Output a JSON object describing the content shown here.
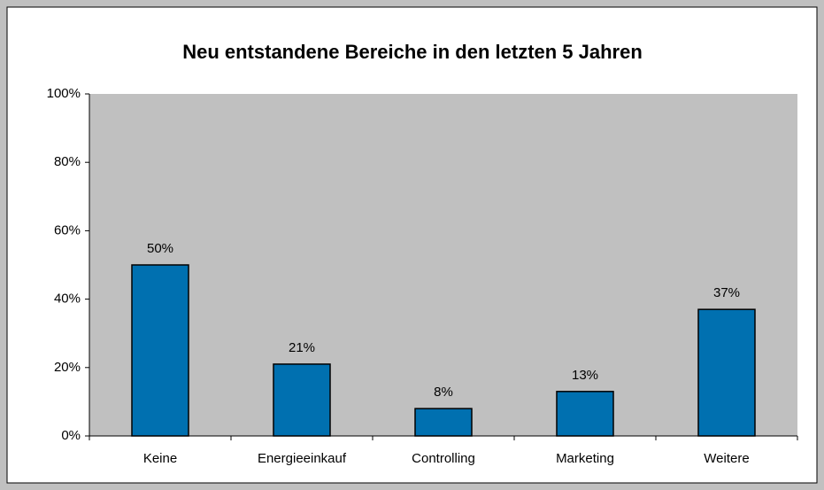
{
  "chart_data": {
    "type": "bar",
    "title": "Neu entstandene Bereiche in den letzten 5 Jahren",
    "categories": [
      "Keine",
      "Energieeinkauf",
      "Controlling",
      "Marketing",
      "Weitere"
    ],
    "values": [
      50,
      21,
      8,
      13,
      37
    ],
    "value_labels": [
      "50%",
      "21%",
      "8%",
      "13%",
      "37%"
    ],
    "color": "#0070b0",
    "ylim": [
      0,
      100
    ],
    "yticks": [
      {
        "value": 0,
        "label": "0%"
      },
      {
        "value": 20,
        "label": "20%"
      },
      {
        "value": 40,
        "label": "40%"
      },
      {
        "value": 60,
        "label": "60%"
      },
      {
        "value": 80,
        "label": "80%"
      },
      {
        "value": 100,
        "label": "100%"
      }
    ],
    "grid": false
  }
}
